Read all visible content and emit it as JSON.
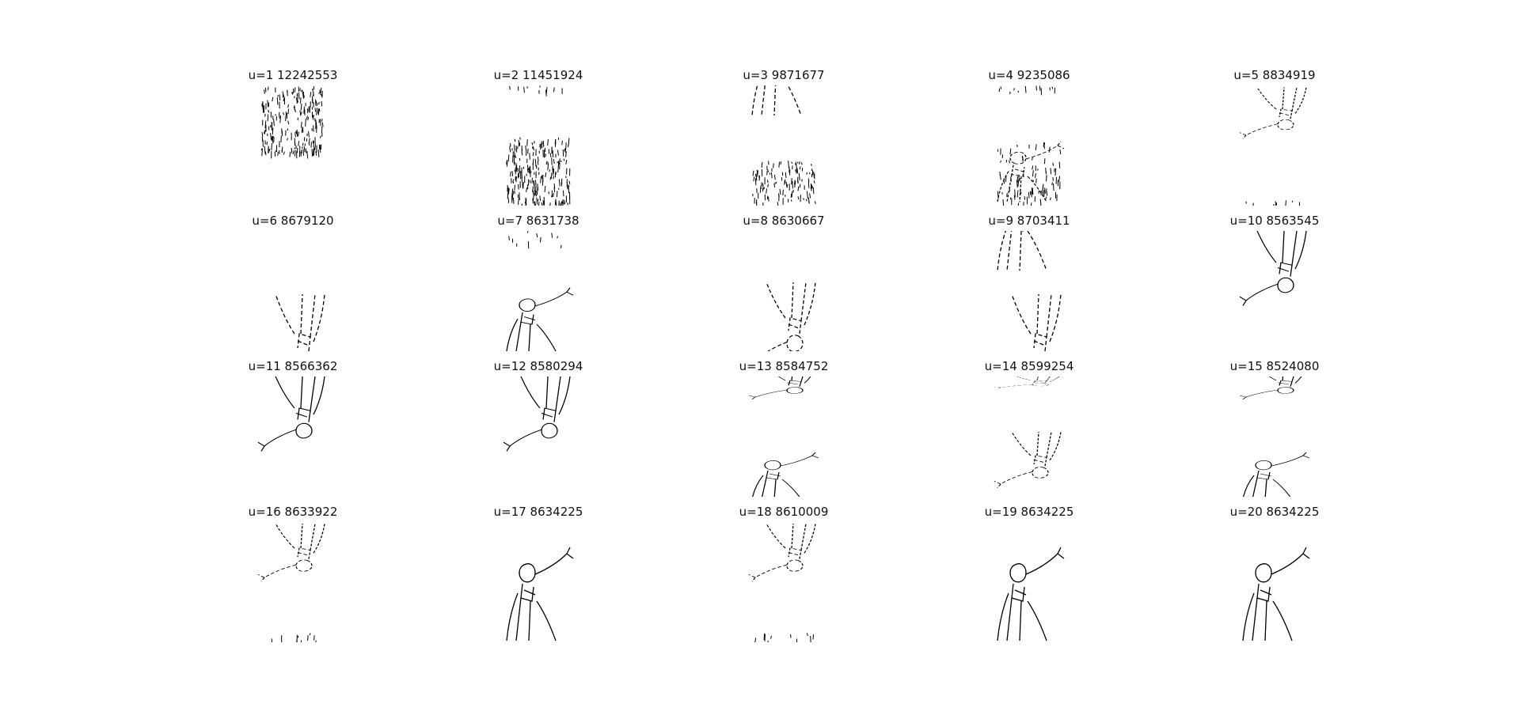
{
  "panels": [
    {
      "title": "u=1 12242553",
      "variant": "noise-top"
    },
    {
      "title": "u=2 11451924",
      "variant": "noise-bottom"
    },
    {
      "title": "u=3 9871677",
      "variant": "split-noise"
    },
    {
      "title": "u=4 9235086",
      "variant": "split-figure-noisy"
    },
    {
      "title": "u=5 8834919",
      "variant": "figure-inverted-noisy"
    },
    {
      "title": "u=6 8679120",
      "variant": "figure-fragment-bottom"
    },
    {
      "title": "u=7 8631738",
      "variant": "split-figure-bottom"
    },
    {
      "title": "u=8 8630667",
      "variant": "figure-bottom-inverted"
    },
    {
      "title": "u=9 8703411",
      "variant": "split-figure-top"
    },
    {
      "title": "u=10 8563545",
      "variant": "figure-inverted"
    },
    {
      "title": "u=11 8566362",
      "variant": "figure-inverted"
    },
    {
      "title": "u=12 8580294",
      "variant": "figure-inverted"
    },
    {
      "title": "u=13 8584752",
      "variant": "split-figure-mid"
    },
    {
      "title": "u=14 8599254",
      "variant": "split-figure-mid-noisy"
    },
    {
      "title": "u=15 8524080",
      "variant": "split-figure-mid"
    },
    {
      "title": "u=16 8633922",
      "variant": "figure-inverted-fragments"
    },
    {
      "title": "u=17 8634225",
      "variant": "figure-upright"
    },
    {
      "title": "u=18 8610009",
      "variant": "figure-inverted-fragments"
    },
    {
      "title": "u=19 8634225",
      "variant": "figure-upright"
    },
    {
      "title": "u=20 8634225",
      "variant": "figure-upright"
    }
  ]
}
